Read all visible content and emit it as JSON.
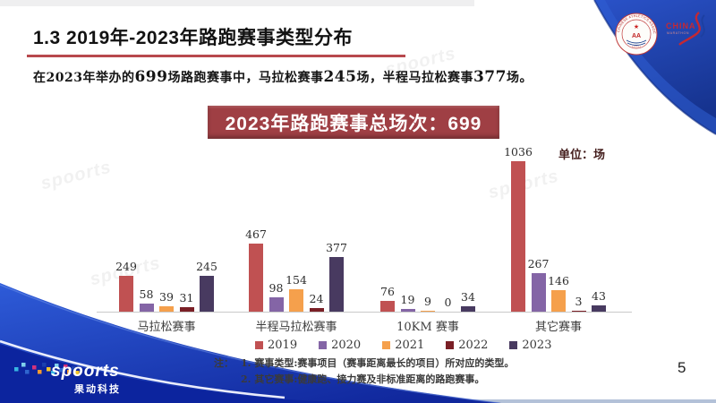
{
  "slide": {
    "title": "1.3 2019年-2023年路跑赛事类型分布",
    "subtitle_parts": [
      {
        "text": "在2023年举办的",
        "em": false
      },
      {
        "text": "699",
        "em": true
      },
      {
        "text": "场路跑赛事中，马拉松赛事",
        "em": false
      },
      {
        "text": "245",
        "em": true
      },
      {
        "text": "场，半程马拉松赛事",
        "em": false
      },
      {
        "text": "377",
        "em": true
      },
      {
        "text": "场。",
        "em": false
      }
    ],
    "banner": "2023年路跑赛事总场次：699",
    "unit_label": "单位：场",
    "page_number": "5",
    "accent_color": "#b8494d",
    "banner_color": "#9f3f44"
  },
  "chart_data": {
    "type": "bar",
    "categories": [
      "马拉松赛事",
      "半程马拉松赛事",
      "10KM 赛事",
      "其它赛事"
    ],
    "series": [
      {
        "name": "2019",
        "color": "#c05152",
        "values": [
          249,
          467,
          76,
          1036
        ]
      },
      {
        "name": "2020",
        "color": "#8465a6",
        "values": [
          58,
          98,
          19,
          267
        ]
      },
      {
        "name": "2021",
        "color": "#f5a04c",
        "values": [
          39,
          154,
          9,
          146
        ]
      },
      {
        "name": "2022",
        "color": "#7a1f26",
        "values": [
          31,
          24,
          0,
          3
        ]
      },
      {
        "name": "2023",
        "color": "#483a60",
        "values": [
          245,
          377,
          34,
          43
        ]
      }
    ],
    "unit": "场",
    "ylim": [
      0,
      1100
    ],
    "grid": false,
    "legend_position": "bottom",
    "value_labels": true
  },
  "notes": {
    "label": "注：",
    "lines": [
      "1. 赛事类型:赛事项目（赛事距离最长的项目）所对应的类型。",
      "2. 其它赛事:健康跑、接力赛及非标准距离的路跑赛事。"
    ]
  },
  "footer_brand": {
    "name": "spoorts",
    "sub": "果动科技"
  },
  "logos": {
    "caa_ring_text": "CHINESE ATHLETICS ASSOCIATION",
    "caa_emblem": "AA",
    "china": "CHINA",
    "china_sub": "MARATHON"
  },
  "watermark": "spoorts"
}
